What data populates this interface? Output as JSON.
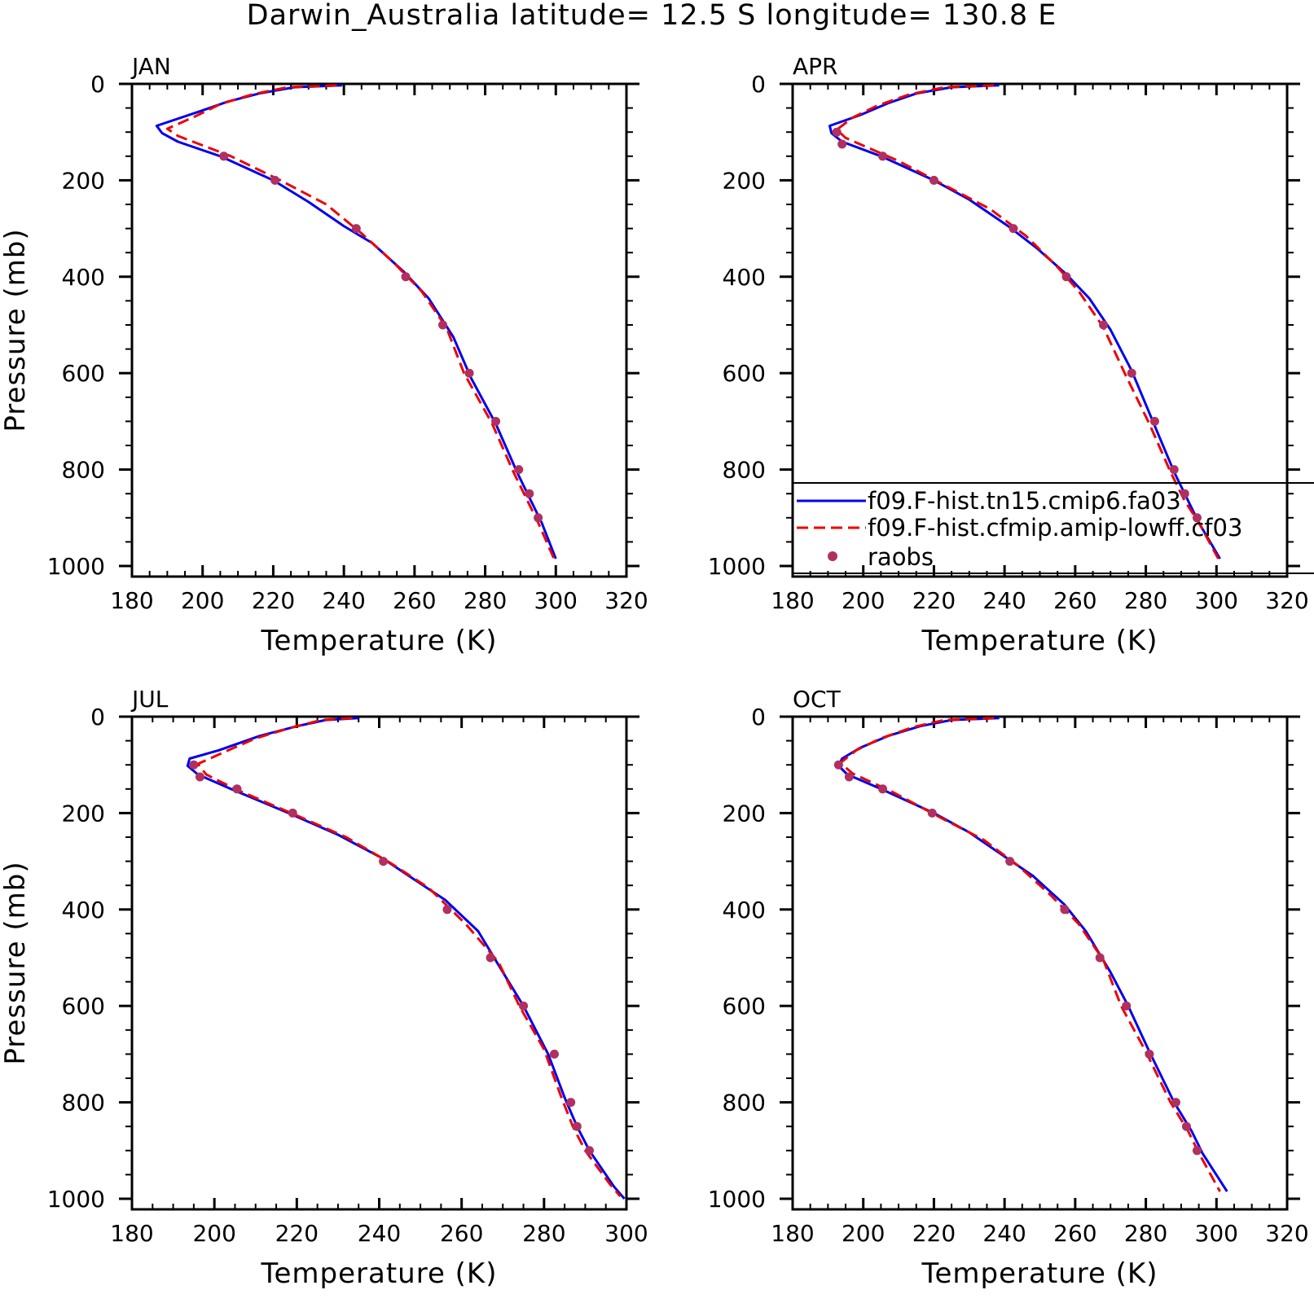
{
  "title": "Darwin_Australia  latitude= 12.5 S longitude= 130.8 E",
  "legend": {
    "entries": [
      {
        "label": "f09.F-hist.tn15.cmip6.fa03",
        "color": "#0000ee",
        "style": "solid"
      },
      {
        "label": "f09.F-hist.cfmip.amip-lowff.cf03",
        "color": "#ee0000",
        "style": "dashed"
      },
      {
        "label": "raobs",
        "color": "#b03060",
        "style": "marker"
      }
    ]
  },
  "colors": {
    "model1": "#0000ee",
    "model2": "#ee0000",
    "obs": "#b03060",
    "axes": "#000000"
  },
  "chart_data": [
    {
      "type": "line",
      "panel": "JAN",
      "xlabel": "Temperature (K)",
      "ylabel": "Pressure (mb)",
      "xlim": [
        180,
        320
      ],
      "ylim": [
        1000,
        0
      ],
      "xticks": [
        180,
        200,
        220,
        240,
        260,
        280,
        300,
        320
      ],
      "yticks": [
        0,
        200,
        400,
        600,
        800,
        1000
      ],
      "series": [
        {
          "name": "f09.F-hist.tn15.cmip6.fa03",
          "x": [
            239.5,
            226.0,
            216.0,
            207.0,
            200.0,
            187.0,
            188.5,
            193.0,
            205.0,
            220.0,
            230.0,
            240.0,
            248.0,
            257.0,
            264.0,
            271.0,
            276.0,
            283.0,
            289.0,
            293.0,
            296.0,
            300.0
          ],
          "y": [
            3,
            7,
            20,
            37,
            55,
            87,
            102,
            120,
            150,
            200,
            245,
            295,
            330,
            390,
            445,
            525,
            610,
            705,
            805,
            865,
            910,
            985
          ]
        },
        {
          "name": "f09.F-hist.cfmip.amip-lowff.cf03",
          "x": [
            238.0,
            224.0,
            214.0,
            205.0,
            198.0,
            190.0,
            193.0,
            208.0,
            222.0,
            235.0,
            245.0,
            254.0,
            262.0,
            269.0,
            274.0,
            282.0,
            288.0,
            292.0,
            295.0,
            299.5
          ],
          "y": [
            3,
            7,
            22,
            42,
            67,
            93,
            108,
            150,
            200,
            250,
            310,
            370,
            430,
            505,
            600,
            705,
            805,
            865,
            910,
            985
          ]
        },
        {
          "name": "raobs",
          "x": [
            206.0,
            220.5,
            243.5,
            257.5,
            268.0,
            275.5,
            283.0,
            289.5,
            292.5,
            295.0
          ],
          "y": [
            150,
            200,
            300,
            400,
            500,
            600,
            700,
            800,
            850,
            900
          ]
        }
      ]
    },
    {
      "type": "line",
      "panel": "APR",
      "xlabel": "Temperature (K)",
      "ylabel": "",
      "xlim": [
        180,
        320
      ],
      "ylim": [
        1000,
        0
      ],
      "xticks": [
        180,
        200,
        220,
        240,
        260,
        280,
        300,
        320
      ],
      "yticks": [
        0,
        200,
        400,
        600,
        800,
        1000
      ],
      "series": [
        {
          "name": "f09.F-hist.tn15.cmip6.fa03",
          "x": [
            238.5,
            225.0,
            215.0,
            207.0,
            199.0,
            190.5,
            191.0,
            194.0,
            205.0,
            220.0,
            230.0,
            241.0,
            249.0,
            257.5,
            264.0,
            270.0,
            276.0,
            282.0,
            288.0,
            292.0,
            295.0,
            301.0
          ],
          "y": [
            3,
            7,
            20,
            40,
            65,
            87,
            102,
            120,
            150,
            200,
            240,
            295,
            340,
            395,
            445,
            510,
            595,
            700,
            805,
            865,
            910,
            985
          ]
        },
        {
          "name": "f09.F-hist.cfmip.amip-lowff.cf03",
          "x": [
            237.0,
            223.0,
            213.0,
            204.0,
            197.0,
            192.5,
            195.0,
            210.0,
            223.0,
            236.0,
            246.0,
            255.0,
            261.0,
            268.0,
            274.0,
            281.0,
            287.0,
            291.0,
            295.0,
            300.5
          ],
          "y": [
            3,
            7,
            22,
            45,
            70,
            95,
            112,
            160,
            210,
            260,
            315,
            380,
            430,
            505,
            600,
            705,
            805,
            865,
            910,
            985
          ]
        },
        {
          "name": "raobs",
          "x": [
            192.5,
            194.0,
            205.5,
            220.0,
            242.5,
            257.5,
            268.0,
            276.0,
            282.5,
            288.0,
            291.0,
            294.5
          ],
          "y": [
            100,
            125,
            150,
            200,
            300,
            400,
            500,
            600,
            700,
            800,
            850,
            900
          ]
        }
      ]
    },
    {
      "type": "line",
      "panel": "JUL",
      "xlabel": "Temperature (K)",
      "ylabel": "Pressure (mb)",
      "xlim": [
        180,
        300
      ],
      "ylim": [
        1000,
        0
      ],
      "xticks": [
        180,
        200,
        220,
        240,
        260,
        280,
        300
      ],
      "yticks": [
        0,
        200,
        400,
        600,
        800,
        1000
      ],
      "series": [
        {
          "name": "f09.F-hist.tn15.cmip6.fa03",
          "x": [
            235.0,
            227.0,
            220.0,
            211.0,
            201.0,
            194.0,
            193.5,
            196.0,
            204.0,
            218.0,
            230.0,
            241.0,
            248.0,
            256.0,
            264.0,
            270.0,
            275.0,
            281.0,
            285.0,
            288.0,
            291.0,
            297.0,
            299.5
          ],
          "y": [
            3,
            7,
            20,
            40,
            70,
            87,
            102,
            120,
            150,
            200,
            245,
            295,
            335,
            380,
            445,
            530,
            600,
            700,
            790,
            850,
            900,
            975,
            1000
          ]
        },
        {
          "name": "f09.F-hist.cfmip.amip-lowff.cf03",
          "x": [
            233.5,
            226.0,
            219.0,
            210.0,
            202.0,
            196.0,
            198.0,
            205.0,
            220.0,
            232.0,
            243.0,
            252.0,
            261.0,
            269.0,
            274.0,
            280.0,
            284.0,
            287.0,
            290.0,
            296.0,
            298.5
          ],
          "y": [
            3,
            7,
            22,
            45,
            75,
            98,
            120,
            150,
            205,
            250,
            305,
            355,
            430,
            510,
            600,
            690,
            785,
            850,
            900,
            970,
            995
          ]
        },
        {
          "name": "raobs",
          "x": [
            195.0,
            196.5,
            205.5,
            219.0,
            241.0,
            256.5,
            267.0,
            275.0,
            282.5,
            286.5,
            288.0,
            291.0
          ],
          "y": [
            100,
            125,
            150,
            200,
            300,
            400,
            500,
            600,
            700,
            800,
            850,
            900
          ]
        }
      ]
    },
    {
      "type": "line",
      "panel": "OCT",
      "xlabel": "Temperature (K)",
      "ylabel": "",
      "xlim": [
        180,
        320
      ],
      "ylim": [
        1000,
        0
      ],
      "xticks": [
        180,
        200,
        220,
        240,
        260,
        280,
        300,
        320
      ],
      "yticks": [
        0,
        200,
        400,
        600,
        800,
        1000
      ],
      "series": [
        {
          "name": "f09.F-hist.tn15.cmip6.fa03",
          "x": [
            238.5,
            225.0,
            216.0,
            207.0,
            199.0,
            194.0,
            193.0,
            195.5,
            205.0,
            220.0,
            230.0,
            240.0,
            248.0,
            257.0,
            263.0,
            270.0,
            275.0,
            281.0,
            288.0,
            293.0,
            296.0,
            303.0
          ],
          "y": [
            3,
            7,
            20,
            40,
            65,
            87,
            102,
            120,
            150,
            200,
            240,
            290,
            330,
            390,
            445,
            530,
            600,
            695,
            800,
            860,
            905,
            985
          ]
        },
        {
          "name": "f09.F-hist.cfmip.amip-lowff.cf03",
          "x": [
            237.0,
            223.0,
            214.0,
            205.0,
            198.0,
            193.5,
            197.0,
            208.0,
            222.0,
            234.0,
            244.0,
            253.0,
            261.0,
            268.0,
            273.0,
            280.0,
            287.0,
            292.0,
            295.0,
            301.0
          ],
          "y": [
            3,
            7,
            22,
            45,
            70,
            96,
            118,
            155,
            210,
            255,
            310,
            370,
            430,
            505,
            600,
            695,
            800,
            860,
            905,
            985
          ]
        },
        {
          "name": "raobs",
          "x": [
            193.0,
            196.0,
            205.5,
            219.5,
            241.5,
            257.0,
            267.0,
            274.5,
            281.0,
            288.5,
            291.5,
            294.5
          ],
          "y": [
            100,
            125,
            150,
            200,
            300,
            400,
            500,
            600,
            700,
            800,
            850,
            900
          ]
        }
      ]
    }
  ]
}
